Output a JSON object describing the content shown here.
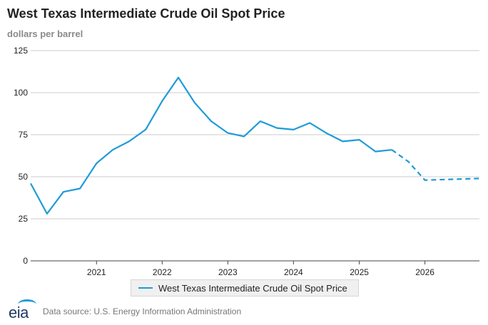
{
  "title": "West Texas Intermediate Crude Oil Spot Price",
  "subtitle": "dollars per barrel",
  "footer": {
    "logo_text": "eia",
    "source": "Data source: U.S. Energy Information Administration"
  },
  "colors": {
    "series": "#1e9bd7",
    "grid": "#cccccc",
    "axis": "#444444",
    "text": "#222222"
  },
  "chart_data": {
    "type": "line",
    "title": "West Texas Intermediate Crude Oil Spot Price",
    "ylabel": "dollars per barrel",
    "xlabel": "",
    "ylim": [
      0,
      125
    ],
    "yticks": [
      0,
      25,
      50,
      75,
      100,
      125
    ],
    "xlim": [
      "2020-01-01",
      "2026-10-31"
    ],
    "xticks": [
      "2021",
      "2022",
      "2023",
      "2024",
      "2025",
      "2026"
    ],
    "grid": true,
    "legend_placement": "bottom",
    "series": [
      {
        "name": "West Texas Intermediate Crude Oil Spot Price",
        "history": [
          {
            "date": "2020-01-01",
            "value": 46
          },
          {
            "date": "2020-04-01",
            "value": 28
          },
          {
            "date": "2020-07-01",
            "value": 41
          },
          {
            "date": "2020-10-01",
            "value": 43
          },
          {
            "date": "2021-01-01",
            "value": 58
          },
          {
            "date": "2021-04-01",
            "value": 66
          },
          {
            "date": "2021-07-01",
            "value": 71
          },
          {
            "date": "2021-10-01",
            "value": 78
          },
          {
            "date": "2022-01-01",
            "value": 95
          },
          {
            "date": "2022-04-01",
            "value": 109
          },
          {
            "date": "2022-07-01",
            "value": 94
          },
          {
            "date": "2022-10-01",
            "value": 83
          },
          {
            "date": "2023-01-01",
            "value": 76
          },
          {
            "date": "2023-04-01",
            "value": 74
          },
          {
            "date": "2023-07-01",
            "value": 83
          },
          {
            "date": "2023-10-01",
            "value": 79
          },
          {
            "date": "2024-01-01",
            "value": 78
          },
          {
            "date": "2024-04-01",
            "value": 82
          },
          {
            "date": "2024-07-01",
            "value": 76
          },
          {
            "date": "2024-10-01",
            "value": 71
          },
          {
            "date": "2025-01-01",
            "value": 72
          },
          {
            "date": "2025-04-01",
            "value": 65
          },
          {
            "date": "2025-07-01",
            "value": 66
          }
        ],
        "forecast": [
          {
            "date": "2025-07-01",
            "value": 66
          },
          {
            "date": "2025-10-01",
            "value": 59
          },
          {
            "date": "2026-01-01",
            "value": 48
          },
          {
            "date": "2026-10-31",
            "value": 49
          }
        ]
      }
    ]
  }
}
